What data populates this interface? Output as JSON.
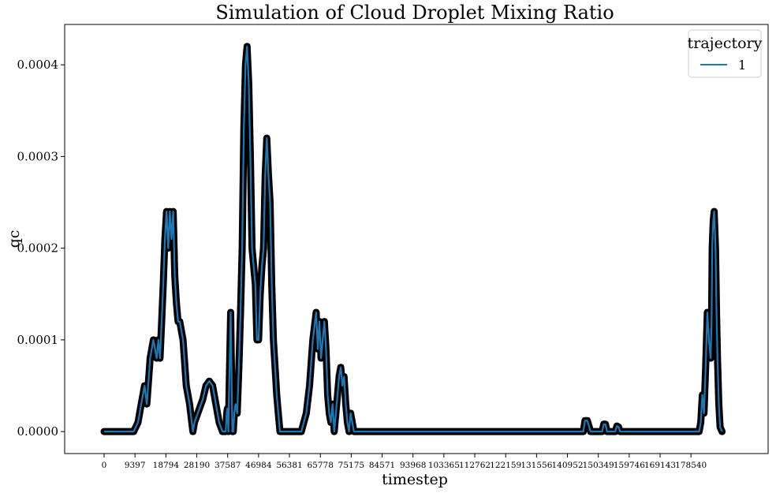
{
  "chart_data": {
    "type": "line",
    "title": "Simulation of Cloud Droplet Mixing Ratio",
    "xlabel": "timestep",
    "ylabel": "qc",
    "xlim": [
      -12000,
      202000
    ],
    "ylim": [
      -2.4e-05,
      0.000444
    ],
    "x_tick_values": [
      0,
      9397,
      18794,
      28190,
      37587,
      46984,
      56381,
      65778,
      75175,
      84571,
      93968,
      103365,
      112762,
      122159,
      131556,
      140952,
      150349,
      159746,
      169143,
      178540
    ],
    "x_tick_labels": [
      "0",
      "9397",
      "18794",
      "28190",
      "37587",
      "46984",
      "56381",
      "65778",
      "75175",
      "84571",
      "93968",
      "103365",
      "112762",
      "122159",
      "131556",
      "140952",
      "150349",
      "159746",
      "169143",
      "178540"
    ],
    "y_tick_values": [
      0.0,
      0.0001,
      0.0002,
      0.0003,
      0.0004
    ],
    "y_tick_labels": [
      "0.0000",
      "0.0001",
      "0.0002",
      "0.0003",
      "0.0004"
    ],
    "grid": false,
    "legend": {
      "title": "trajectory",
      "position": "top-right",
      "entries": [
        "1"
      ]
    },
    "line_color": "#1f77b4",
    "marker": "x",
    "marker_color": "#000000",
    "series": [
      {
        "name": "1",
        "x": [
          0,
          5000,
          9000,
          10300,
          11300,
          12300,
          13000,
          14000,
          15000,
          16000,
          16500,
          17000,
          17500,
          18000,
          18500,
          19000,
          19500,
          20000,
          20500,
          21000,
          21500,
          22000,
          22500,
          23000,
          24000,
          25000,
          26000,
          27000,
          27500,
          28000,
          29000,
          30000,
          31000,
          32000,
          33000,
          34000,
          35000,
          36000,
          37000,
          37300,
          37500,
          37800,
          38000,
          38500,
          39000,
          39300,
          39600,
          40000,
          40500,
          41000,
          41500,
          42000,
          42500,
          43000,
          43500,
          44000,
          44500,
          45000,
          45500,
          46000,
          46500,
          47000,
          47500,
          48000,
          48500,
          49000,
          49500,
          50000,
          50500,
          51000,
          51500,
          52000,
          52500,
          53000,
          53500,
          54000,
          54500,
          55000,
          55500,
          56000,
          57000,
          60000,
          61500,
          62500,
          63500,
          64500,
          65000,
          65500,
          66000,
          66500,
          67000,
          67500,
          68000,
          68500,
          69000,
          69500,
          70000,
          71000,
          71500,
          72000,
          72500,
          73000,
          73500,
          74000,
          74500,
          75000,
          75500,
          76000,
          76500,
          77000,
          78000,
          85000,
          100000,
          120000,
          140000,
          145000,
          145300,
          145800,
          146300,
          147000,
          148000,
          151000,
          151500,
          152000,
          152500,
          153000,
          154000,
          155500,
          156000,
          156500,
          157000,
          158000,
          175000,
          180000,
          181000,
          181500,
          182000,
          182500,
          183000,
          183500,
          184000,
          184500,
          184800,
          185000,
          185300,
          185600,
          186000,
          186300,
          186600,
          187000,
          187400,
          188000
        ],
        "y": [
          0.0,
          0.0,
          0.0,
          1e-05,
          3e-05,
          5e-05,
          3e-05,
          8e-05,
          0.0001,
          8e-05,
          0.0001,
          8e-05,
          0.00012,
          0.00016,
          0.00021,
          0.00024,
          0.0002,
          0.00024,
          0.00021,
          0.00024,
          0.00017,
          0.00014,
          0.00012,
          0.00012,
          0.0001,
          5e-05,
          3e-05,
          0.0,
          1e-05,
          1.5e-05,
          2.5e-05,
          3.5e-05,
          5e-05,
          5.5e-05,
          5e-05,
          3e-05,
          1e-05,
          0.0,
          0.0,
          2e-05,
          2.5e-05,
          0.0,
          4e-05,
          0.00013,
          0.0,
          0.0,
          2e-05,
          3e-05,
          2e-05,
          7e-05,
          0.00013,
          0.0002,
          0.00033,
          0.0004,
          0.00042,
          0.00038,
          0.0003,
          0.0002,
          0.00018,
          0.00016,
          0.0001,
          0.0001,
          0.00015,
          0.00018,
          0.0002,
          0.00028,
          0.00032,
          0.00028,
          0.00025,
          0.00016,
          0.0001,
          7e-05,
          4e-05,
          2e-05,
          0.0,
          0.0,
          0.0,
          0.0,
          0.0,
          0.0,
          0.0,
          0.0,
          2e-05,
          5e-05,
          0.0001,
          0.00013,
          9e-05,
          0.00012,
          8e-05,
          0.0001,
          0.00012,
          9e-05,
          4e-05,
          2e-05,
          1e-05,
          3e-05,
          0.0,
          4e-05,
          6e-05,
          7e-05,
          5e-05,
          6e-05,
          3e-05,
          1e-05,
          0.0,
          2e-05,
          1e-05,
          0.0,
          0.0,
          0.0,
          0.0,
          0.0,
          0.0,
          0.0,
          0.0,
          0.0,
          0.0,
          0.0,
          1.2e-05,
          1.2e-05,
          0.0,
          0.0,
          0.0,
          8e-06,
          8e-06,
          0.0,
          0.0,
          0.0,
          6e-06,
          5e-06,
          0.0,
          0.0,
          0.0,
          0.0,
          0.0,
          1e-05,
          4e-05,
          2e-05,
          7e-05,
          0.00013,
          0.0001,
          8e-05,
          0.00012,
          0.0002,
          0.00023,
          0.00024,
          0.0002,
          0.00013,
          8e-05,
          3e-05,
          5e-06,
          0.0
        ]
      }
    ]
  }
}
